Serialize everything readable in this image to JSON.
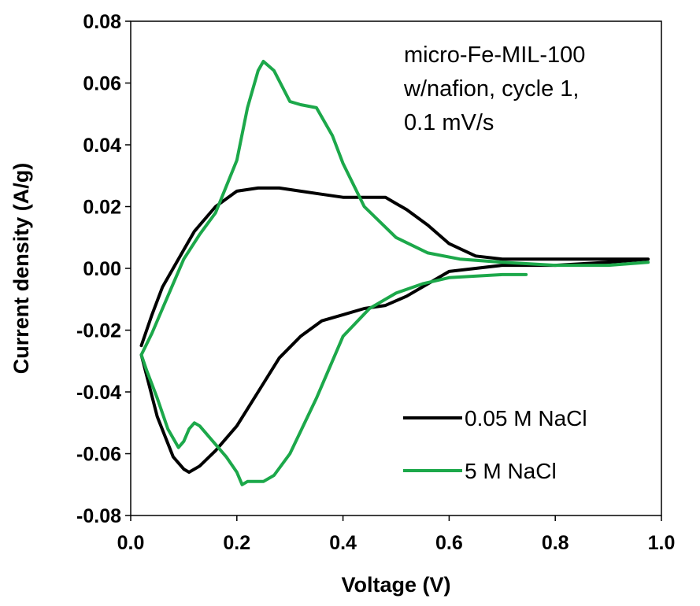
{
  "chart_data": {
    "type": "line",
    "xlabel": "Voltage (V)",
    "ylabel": "Current density (A/g)",
    "xlim": [
      0.0,
      1.0
    ],
    "ylim": [
      -0.08,
      0.08
    ],
    "x_ticks": [
      "0.0",
      "0.2",
      "0.4",
      "0.6",
      "0.8",
      "1.0"
    ],
    "y_ticks": [
      "0.08",
      "0.06",
      "0.04",
      "0.02",
      "0.00",
      "-0.02",
      "-0.04",
      "-0.06",
      "-0.08"
    ],
    "x_tick_values": [
      0.0,
      0.2,
      0.4,
      0.6,
      0.8,
      1.0
    ],
    "y_tick_values": [
      0.08,
      0.06,
      0.04,
      0.02,
      0.0,
      -0.02,
      -0.04,
      -0.06,
      -0.08
    ],
    "grid": false,
    "legend_position": "bottom-right",
    "annotation": [
      "micro-Fe-MIL-100",
      "w/nafion, cycle 1,",
      "0.1 mV/s"
    ],
    "series": [
      {
        "name": "0.05 M NaCl",
        "color": "#000000",
        "x": [
          0.02,
          0.05,
          0.08,
          0.1,
          0.11,
          0.13,
          0.16,
          0.2,
          0.24,
          0.28,
          0.32,
          0.36,
          0.4,
          0.44,
          0.48,
          0.52,
          0.56,
          0.6,
          0.65,
          0.7,
          0.8,
          0.9,
          0.975,
          0.9,
          0.8,
          0.7,
          0.65,
          0.6,
          0.56,
          0.52,
          0.5,
          0.48,
          0.45,
          0.4,
          0.36,
          0.32,
          0.28,
          0.24,
          0.2,
          0.16,
          0.12,
          0.1,
          0.08,
          0.06,
          0.04,
          0.02
        ],
        "y": [
          -0.028,
          -0.048,
          -0.061,
          -0.065,
          -0.066,
          -0.064,
          -0.059,
          -0.051,
          -0.04,
          -0.029,
          -0.022,
          -0.017,
          -0.015,
          -0.013,
          -0.012,
          -0.009,
          -0.005,
          -0.001,
          0.0,
          0.001,
          0.001,
          0.002,
          0.003,
          0.003,
          0.003,
          0.003,
          0.004,
          0.008,
          0.014,
          0.019,
          0.021,
          0.023,
          0.023,
          0.023,
          0.024,
          0.025,
          0.026,
          0.026,
          0.025,
          0.02,
          0.012,
          0.006,
          0.0,
          -0.006,
          -0.015,
          -0.025
        ]
      },
      {
        "name": "5 M NaCl",
        "color": "#1ca84a",
        "x": [
          0.745,
          0.7,
          0.6,
          0.55,
          0.5,
          0.45,
          0.4,
          0.35,
          0.3,
          0.27,
          0.25,
          0.22,
          0.21,
          0.2,
          0.18,
          0.15,
          0.13,
          0.12,
          0.11,
          0.1,
          0.09,
          0.07,
          0.05,
          0.03,
          0.02,
          0.04,
          0.06,
          0.08,
          0.1,
          0.13,
          0.16,
          0.2,
          0.22,
          0.24,
          0.25,
          0.27,
          0.3,
          0.32,
          0.35,
          0.38,
          0.4,
          0.44,
          0.5,
          0.56,
          0.62,
          0.7,
          0.8,
          0.9,
          0.975
        ],
        "y": [
          -0.002,
          -0.002,
          -0.003,
          -0.005,
          -0.008,
          -0.013,
          -0.022,
          -0.042,
          -0.06,
          -0.067,
          -0.069,
          -0.069,
          -0.07,
          -0.066,
          -0.061,
          -0.055,
          -0.051,
          -0.05,
          -0.052,
          -0.056,
          -0.058,
          -0.052,
          -0.042,
          -0.033,
          -0.028,
          -0.021,
          -0.013,
          -0.005,
          0.003,
          0.011,
          0.018,
          0.035,
          0.052,
          0.064,
          0.067,
          0.064,
          0.054,
          0.053,
          0.052,
          0.043,
          0.034,
          0.02,
          0.01,
          0.005,
          0.003,
          0.002,
          0.001,
          0.001,
          0.002
        ]
      }
    ]
  }
}
